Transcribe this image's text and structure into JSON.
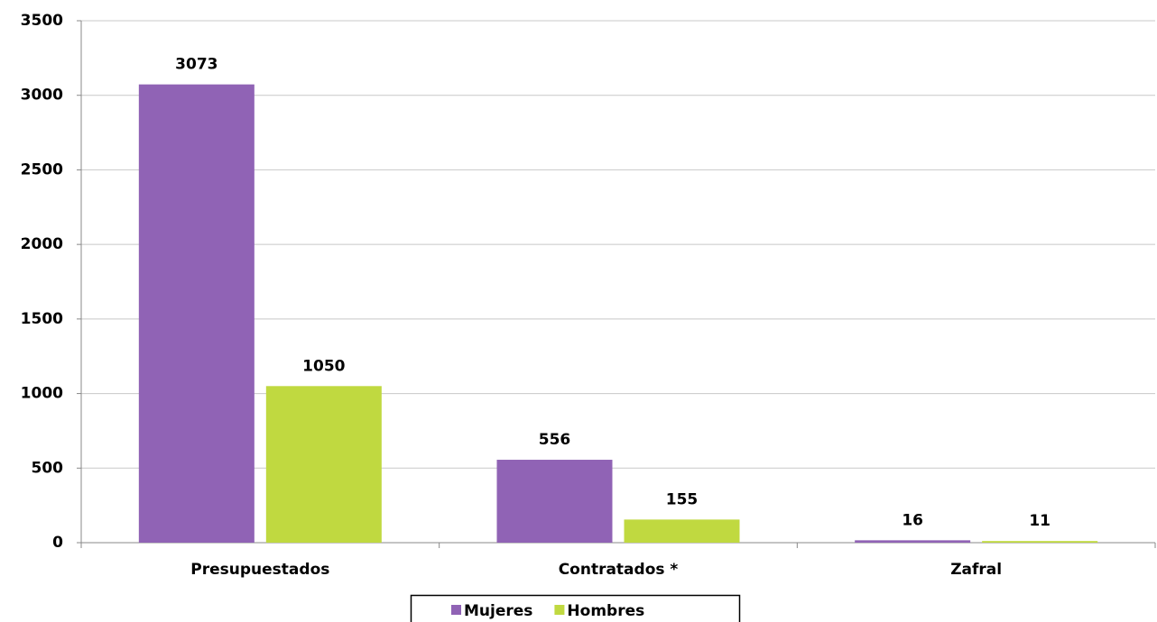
{
  "chart_data": {
    "type": "bar",
    "categories": [
      "Presupuestados",
      "Contratados *",
      "Zafral"
    ],
    "series": [
      {
        "name": "Mujeres",
        "color": "#9063b5",
        "values": [
          3073,
          556,
          16
        ]
      },
      {
        "name": "Hombres",
        "color": "#c0d940",
        "values": [
          1050,
          155,
          11
        ]
      }
    ],
    "ylim": [
      0,
      3500
    ],
    "yticks": [
      0,
      500,
      1000,
      1500,
      2000,
      2500,
      3000,
      3500
    ],
    "grid": true,
    "legend": "bottom"
  }
}
